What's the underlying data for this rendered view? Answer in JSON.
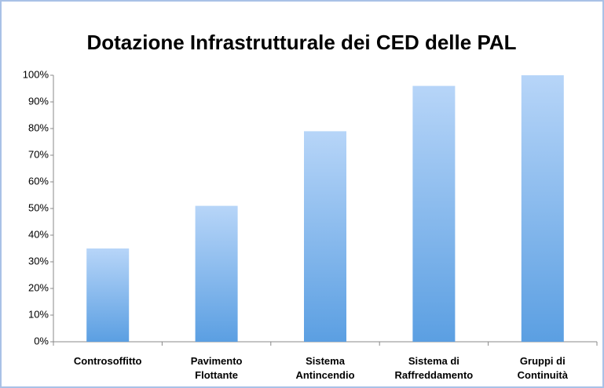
{
  "chart_data": {
    "type": "bar",
    "title": "Dotazione Infrastrutturale dei CED delle PAL",
    "categories": [
      "Controsoffitto",
      "Pavimento\nFlottante",
      "Sistema\nAntincendio",
      "Sistema di\nRaffreddamento",
      "Gruppi di\nContinuità"
    ],
    "values": [
      35,
      51,
      79,
      96,
      100
    ],
    "color": "#5b9fe2",
    "ylim": [
      0,
      100
    ],
    "yticks": [
      {
        "value": 0,
        "label": "0%"
      },
      {
        "value": 10,
        "label": "10%"
      },
      {
        "value": 20,
        "label": "20%"
      },
      {
        "value": 30,
        "label": "30%"
      },
      {
        "value": 40,
        "label": "40%"
      },
      {
        "value": 50,
        "label": "50%"
      },
      {
        "value": 60,
        "label": "60%"
      },
      {
        "value": 70,
        "label": "70%"
      },
      {
        "value": 80,
        "label": "80%"
      },
      {
        "value": 90,
        "label": "90%"
      },
      {
        "value": 100,
        "label": "100%"
      }
    ],
    "grid": false
  }
}
